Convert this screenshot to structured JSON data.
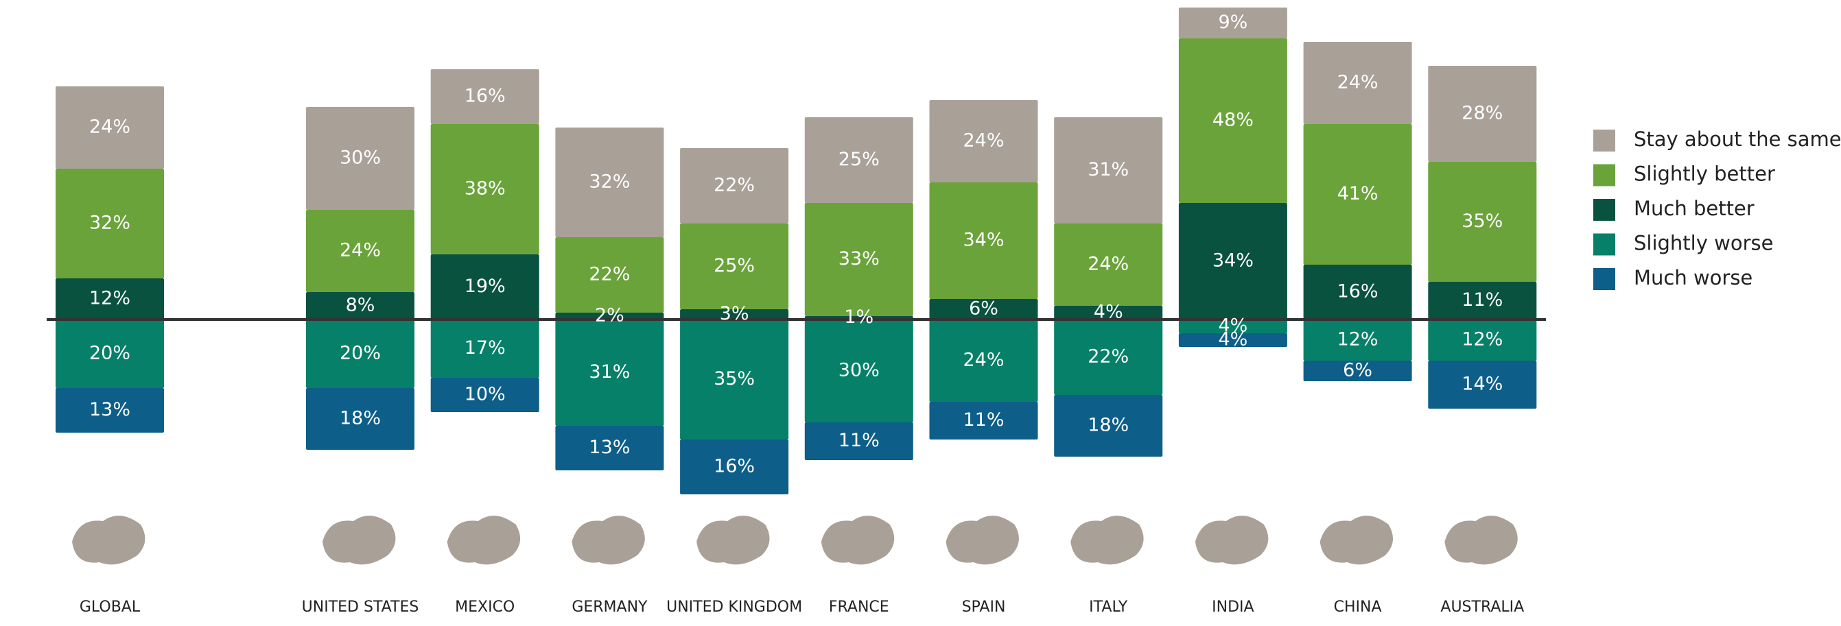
{
  "chart_data": {
    "type": "diverging_stacked_bar",
    "categories": [
      "GLOBAL",
      "UNITED STATES",
      "MEXICO",
      "GERMANY",
      "UNITED KINGDOM",
      "FRANCE",
      "SPAIN",
      "ITALY",
      "INDIA",
      "CHINA",
      "AUSTRALIA"
    ],
    "series": [
      {
        "name": "Stay about the same",
        "color": "#a9a098",
        "direction": "up",
        "values": [
          24,
          30,
          16,
          32,
          22,
          25,
          24,
          31,
          9,
          24,
          28
        ],
        "value_labels": [
          "24%",
          "30%",
          "16%",
          "32%",
          "22%",
          "25%",
          "24%",
          "31%",
          "9%",
          "24%",
          "28%"
        ]
      },
      {
        "name": "Slightly better",
        "color": "#6aa33a",
        "direction": "up",
        "values": [
          32,
          24,
          38,
          22,
          25,
          33,
          34,
          24,
          48,
          41,
          35
        ],
        "value_labels": [
          "32%",
          "24%",
          "38%",
          "22%",
          "25%",
          "33%",
          "34%",
          "24%",
          "48%",
          "41%",
          "35%"
        ]
      },
      {
        "name": "Much better",
        "color": "#0a5240",
        "direction": "up",
        "values": [
          12,
          8,
          19,
          2,
          3,
          1,
          6,
          4,
          34,
          16,
          11
        ],
        "value_labels": [
          "12%",
          "8%",
          "19%",
          "2%",
          "3%",
          "1%",
          "6%",
          "4%",
          "34%",
          "16%",
          "11%"
        ]
      },
      {
        "name": "Slightly worse",
        "color": "#068068",
        "direction": "down",
        "values": [
          20,
          20,
          17,
          31,
          35,
          30,
          24,
          22,
          4,
          12,
          12
        ],
        "value_labels": [
          "20%",
          "20%",
          "17%",
          "31%",
          "35%",
          "30%",
          "24%",
          "22%",
          "4%",
          "12%",
          "12%"
        ]
      },
      {
        "name": "Much worse",
        "color": "#0d5e88",
        "direction": "down",
        "values": [
          13,
          18,
          10,
          13,
          16,
          11,
          11,
          18,
          4,
          6,
          14
        ],
        "value_labels": [
          "13%",
          "18%",
          "10%",
          "13%",
          "16%",
          "11%",
          "11%",
          "18%",
          "4%",
          "6%",
          "14%"
        ]
      }
    ],
    "legend": "right"
  }
}
